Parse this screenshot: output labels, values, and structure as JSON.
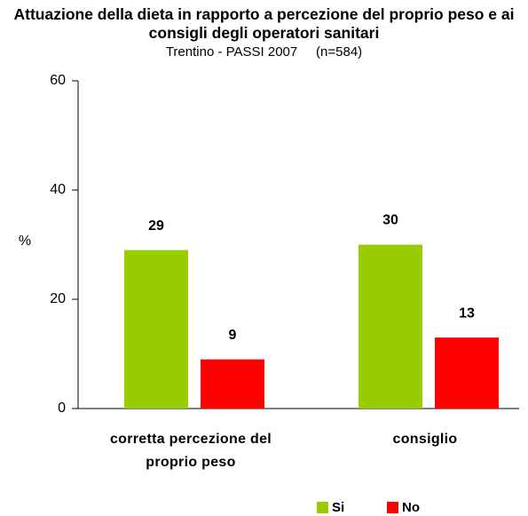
{
  "chart_data": {
    "type": "bar",
    "title": "Attuazione della dieta in rapporto a percezione del proprio peso e ai consigli degli operatori sanitari",
    "subtitle": "Trentino - PASSI 2007     (n=584)",
    "y_label": "%",
    "categories": [
      "corretta percezione del proprio peso",
      "consiglio"
    ],
    "series": [
      {
        "name": "Si",
        "color": "#99cc00",
        "values": [
          29,
          30
        ]
      },
      {
        "name": "No",
        "color": "#ff0000",
        "values": [
          9,
          13
        ]
      }
    ],
    "ylim": [
      0,
      60
    ],
    "yticks": [
      0,
      20,
      40,
      60
    ],
    "legend": "bottom"
  }
}
